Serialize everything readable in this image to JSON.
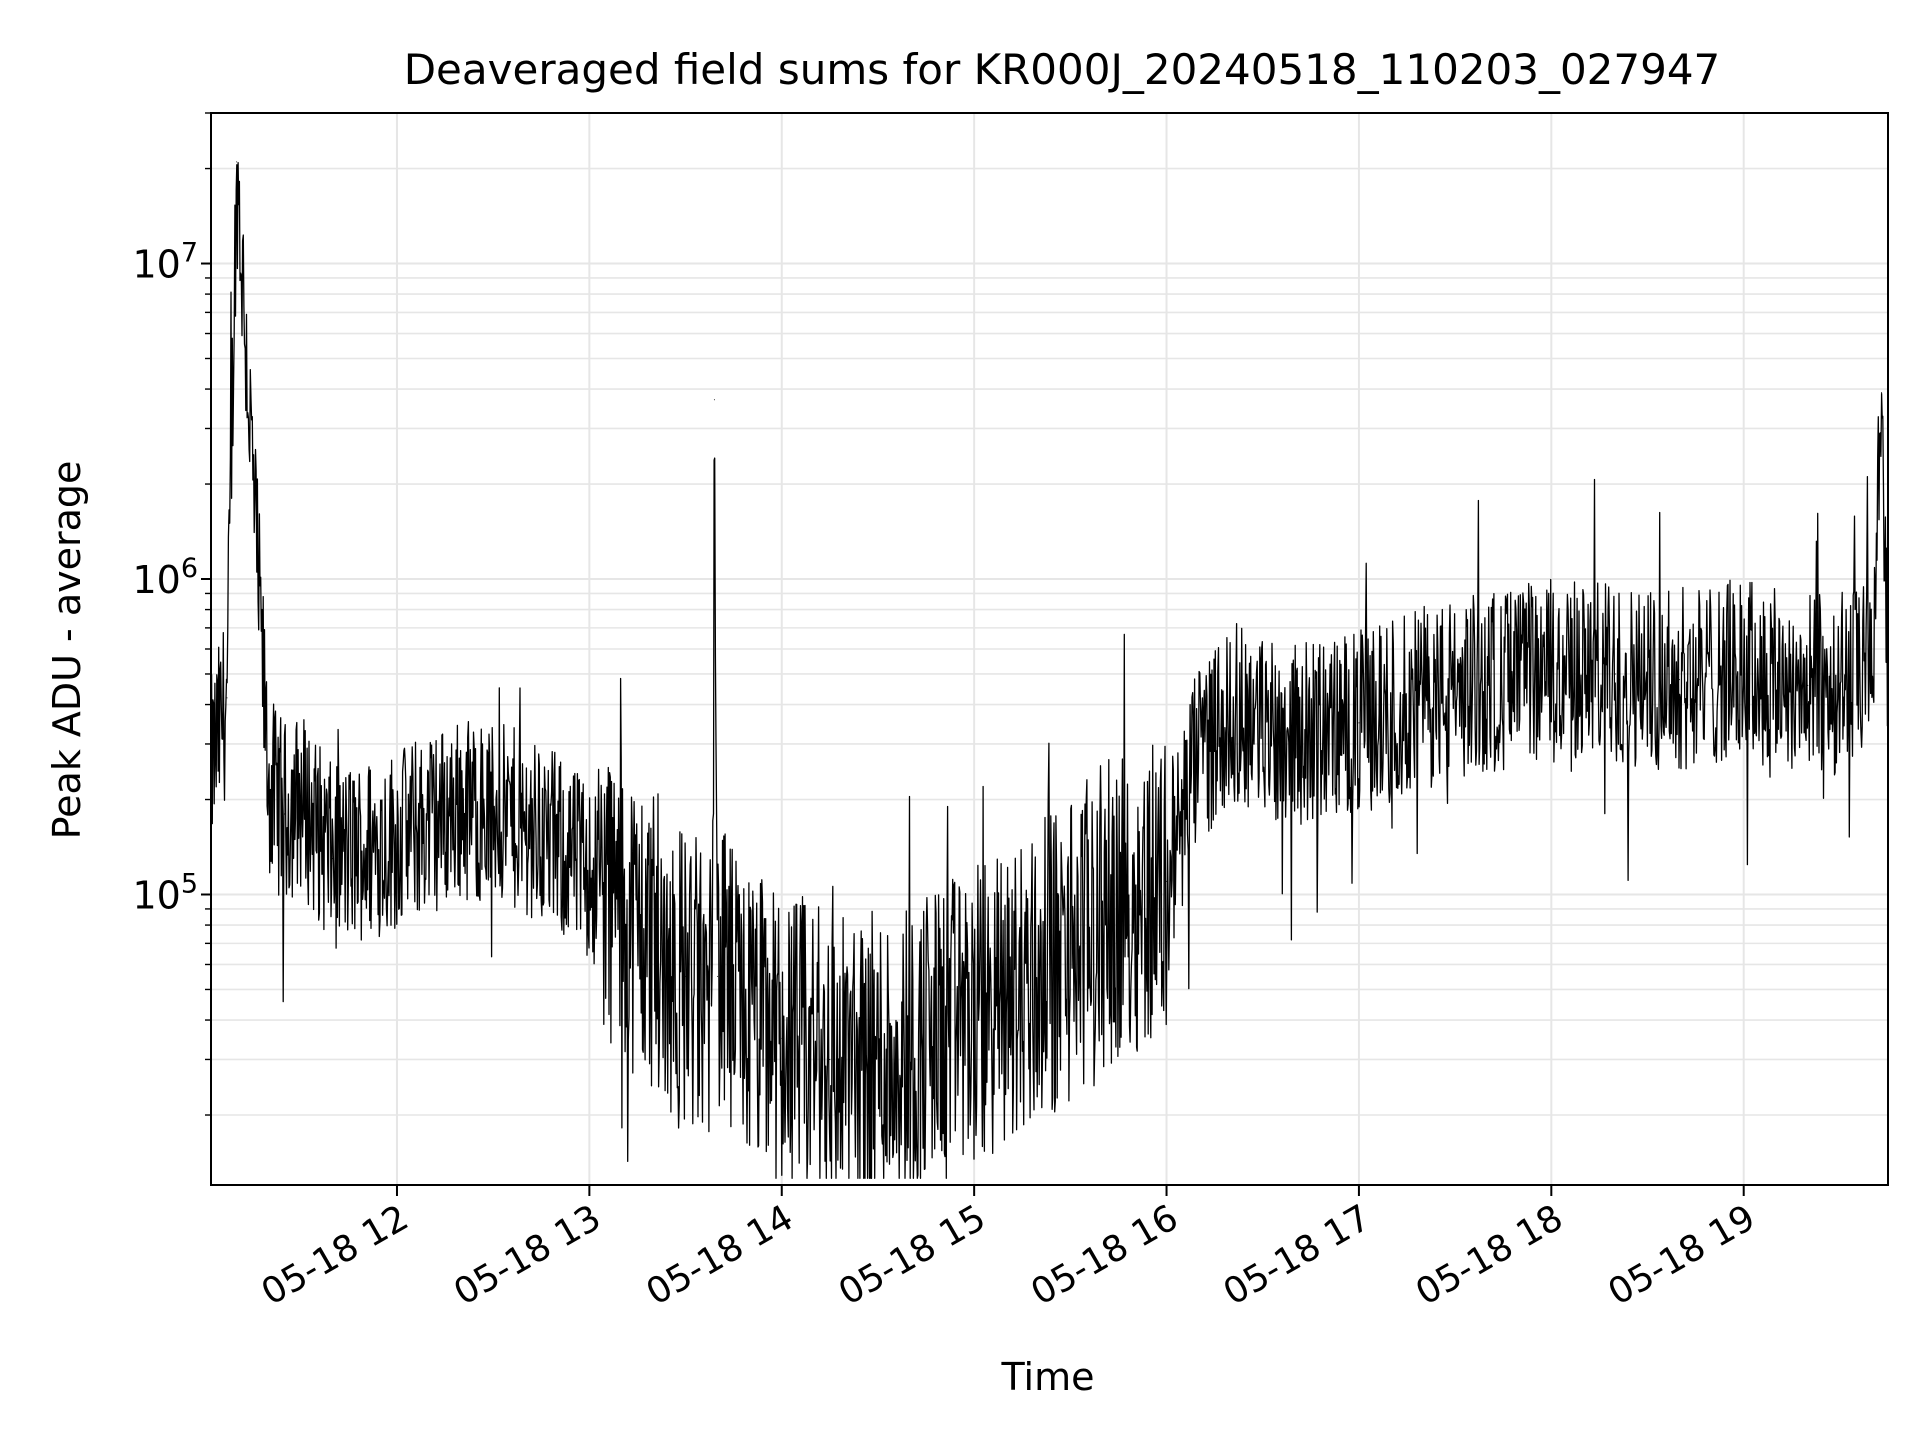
{
  "chart_data": {
    "type": "line",
    "title": "Deaveraged field sums for KR000J_20240518_110203_027947",
    "xlabel": "Time",
    "ylabel": "Peak ADU - average",
    "yscale": "log",
    "grid": true,
    "xlim": [
      "2024-05-18 11:02",
      "2024-05-18 19:45"
    ],
    "ylim": [
      12000,
      30000000
    ],
    "x_ticks": [
      "05-18 12",
      "05-18 13",
      "05-18 14",
      "05-18 15",
      "05-18 16",
      "05-18 17",
      "05-18 18",
      "05-18 19"
    ],
    "y_ticks": [
      {
        "base": "10",
        "exp": "5",
        "value": 100000
      },
      {
        "base": "10",
        "exp": "6",
        "value": 1000000
      },
      {
        "base": "10",
        "exp": "7",
        "value": 10000000
      }
    ],
    "line_color": "#000000",
    "series": [
      {
        "x": [
          "2024-05-18 11:02",
          "2024-05-18 11:07",
          "2024-05-18 11:10",
          "2024-05-18 11:20",
          "2024-05-18 11:25",
          "2024-05-18 11:30",
          "2024-05-18 11:40",
          "2024-05-18 12:00",
          "2024-05-18 12:20",
          "2024-05-18 12:40",
          "2024-05-18 13:00",
          "2024-05-18 13:15",
          "2024-05-18 13:30",
          "2024-05-18 13:38",
          "2024-05-18 13:39",
          "2024-05-18 13:40",
          "2024-05-18 13:50",
          "2024-05-18 14:00",
          "2024-05-18 14:15",
          "2024-05-18 14:25",
          "2024-05-18 14:40",
          "2024-05-18 15:00",
          "2024-05-18 15:20",
          "2024-05-18 15:40",
          "2024-05-18 16:00",
          "2024-05-18 16:10",
          "2024-05-18 16:20",
          "2024-05-18 16:40",
          "2024-05-18 17:00",
          "2024-05-18 17:20",
          "2024-05-18 17:40",
          "2024-05-18 18:00",
          "2024-05-18 18:20",
          "2024-05-18 18:40",
          "2024-05-18 19:00",
          "2024-05-18 19:20",
          "2024-05-18 19:40",
          "2024-05-18 19:43",
          "2024-05-18 19:45"
        ],
        "y": [
          250000,
          420000,
          21000000,
          220000,
          180000,
          200000,
          130000,
          150000,
          190000,
          170000,
          120000,
          80000,
          55000,
          45000,
          3700000,
          55000,
          40000,
          35000,
          30000,
          28000,
          33000,
          40000,
          55000,
          85000,
          110000,
          280000,
          380000,
          320000,
          350000,
          420000,
          470000,
          520000,
          500000,
          480000,
          520000,
          460000,
          500000,
          3900000,
          550000
        ]
      }
    ]
  }
}
